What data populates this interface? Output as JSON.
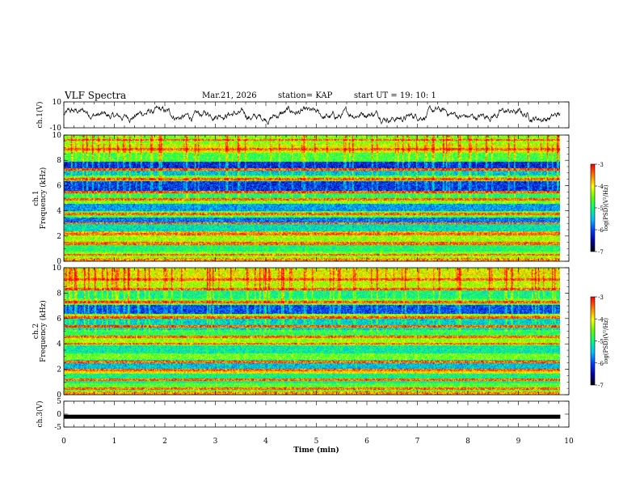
{
  "header": {
    "title": "VLF Spectra",
    "date": "Mar.21, 2026",
    "station": "station= KAP",
    "start": "start  UT  =   19: 10: 1"
  },
  "chart_data": {
    "type": "heatmap",
    "time_axis": {
      "label": "Time  (min)",
      "range": [
        0,
        10
      ],
      "ticks": [
        "0",
        "1",
        "2",
        "3",
        "4",
        "5",
        "6",
        "7",
        "8",
        "9",
        "10"
      ],
      "data_extent_min": 9.83
    },
    "panels": [
      {
        "id": "ch1-waveform",
        "type": "line",
        "ylabel": "ch.1(V)",
        "ylim": [
          -10,
          10
        ],
        "yticks": [
          "10",
          "-10"
        ]
      },
      {
        "id": "ch1-spectrogram",
        "type": "heatmap",
        "ylabel": "ch.1\nFrequency  (kHz)",
        "ylim": [
          0,
          10
        ],
        "yticks": [
          "0",
          "2",
          "4",
          "6",
          "8",
          "10"
        ],
        "colorbar": {
          "label": "log(PSD)(V²/Hz)",
          "range": [
            -7,
            -3
          ],
          "ticks": [
            "-3",
            "-4",
            "-5",
            "-6",
            "-7"
          ]
        },
        "bands": [
          {
            "f": [
              0.0,
              0.3
            ],
            "level": -3.6
          },
          {
            "f": [
              0.3,
              0.8
            ],
            "level": -4.4
          },
          {
            "f": [
              0.8,
              1.3
            ],
            "level": -4.9
          },
          {
            "f": [
              1.3,
              1.6
            ],
            "level": -3.4
          },
          {
            "f": [
              1.6,
              2.1
            ],
            "level": -4.3
          },
          {
            "f": [
              2.1,
              2.4
            ],
            "level": -3.7
          },
          {
            "f": [
              2.4,
              3.0
            ],
            "level": -5.2
          },
          {
            "f": [
              3.0,
              3.5
            ],
            "level": -5.8
          },
          {
            "f": [
              3.5,
              4.0
            ],
            "level": -4.6
          },
          {
            "f": [
              4.0,
              4.6
            ],
            "level": -5.6
          },
          {
            "f": [
              4.6,
              5.0
            ],
            "level": -4.4
          },
          {
            "f": [
              5.0,
              5.4
            ],
            "level": -4.9
          },
          {
            "f": [
              5.4,
              6.4
            ],
            "level": -6.1
          },
          {
            "f": [
              6.4,
              6.8
            ],
            "level": -4.5
          },
          {
            "f": [
              6.8,
              7.2
            ],
            "level": -5.4
          },
          {
            "f": [
              7.2,
              7.9
            ],
            "level": -6.2
          },
          {
            "f": [
              7.9,
              8.6
            ],
            "level": -4.7
          },
          {
            "f": [
              8.6,
              9.3
            ],
            "level": -4.1
          },
          {
            "f": [
              9.3,
              10.0
            ],
            "level": -4.4
          }
        ],
        "lines_khz": [
          0.55,
          1.45,
          2.2,
          3.05,
          3.8,
          4.95,
          5.5,
          6.55,
          7.3,
          8.9,
          9.65
        ]
      },
      {
        "id": "ch2-spectrogram",
        "type": "heatmap",
        "ylabel": "ch.2\nFrequency  (kHz)",
        "ylim": [
          0,
          10
        ],
        "yticks": [
          "0",
          "2",
          "4",
          "6",
          "8",
          "10"
        ],
        "colorbar": {
          "label": "log(PSD)(V²/Hz)",
          "range": [
            -7,
            -3
          ],
          "ticks": [
            "-3",
            "-4",
            "-5",
            "-6",
            "-7"
          ]
        },
        "bands": [
          {
            "f": [
              0.0,
              0.3
            ],
            "level": -3.6
          },
          {
            "f": [
              0.3,
              0.9
            ],
            "level": -4.6
          },
          {
            "f": [
              0.9,
              1.7
            ],
            "level": -5.0
          },
          {
            "f": [
              1.7,
              2.1
            ],
            "level": -4.0
          },
          {
            "f": [
              2.1,
              2.8
            ],
            "level": -5.4
          },
          {
            "f": [
              2.8,
              3.3
            ],
            "level": -4.5
          },
          {
            "f": [
              3.3,
              3.9
            ],
            "level": -5.1
          },
          {
            "f": [
              3.9,
              4.5
            ],
            "level": -4.3
          },
          {
            "f": [
              4.5,
              5.1
            ],
            "level": -4.8
          },
          {
            "f": [
              5.1,
              6.0
            ],
            "level": -5.3
          },
          {
            "f": [
              6.0,
              6.4
            ],
            "level": -4.4
          },
          {
            "f": [
              6.4,
              7.1
            ],
            "level": -6.0
          },
          {
            "f": [
              7.1,
              7.6
            ],
            "level": -4.6
          },
          {
            "f": [
              7.6,
              8.4
            ],
            "level": -5.0
          },
          {
            "f": [
              8.4,
              9.2
            ],
            "level": -4.2
          },
          {
            "f": [
              9.2,
              10.0
            ],
            "level": -4.0
          }
        ],
        "lines_khz": [
          0.5,
          1.2,
          2.0,
          2.6,
          4.05,
          4.6,
          5.4,
          6.1,
          7.35,
          8.35,
          9.1
        ]
      },
      {
        "id": "ch3-waveform",
        "type": "line",
        "ylabel": "ch.3(V)",
        "ylim": [
          -5,
          5
        ],
        "yticks": [
          "5",
          "0",
          "-5"
        ],
        "signal_level_v": -1.0
      }
    ]
  },
  "colors": {
    "axis": "#000000",
    "trace": "#000000",
    "colormap": [
      "#000000",
      "#0000a0",
      "#0040ff",
      "#00c0ff",
      "#00ff80",
      "#60ff00",
      "#ffff00",
      "#ff8000",
      "#ff0000",
      "#ffffff"
    ]
  }
}
